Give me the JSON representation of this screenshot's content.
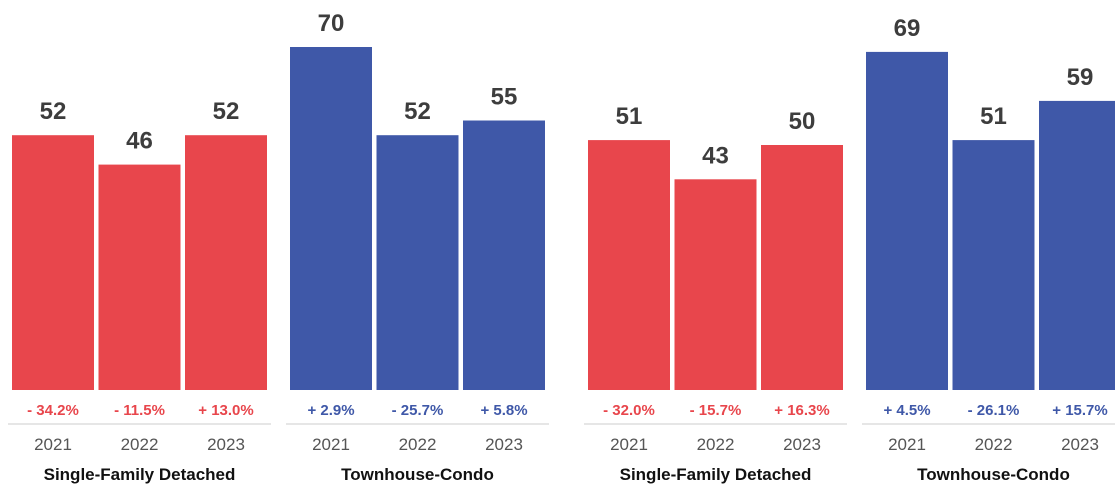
{
  "chart_data": [
    {
      "type": "bar",
      "groups": [
        {
          "label": "Single-Family Detached",
          "color": "#e8464c",
          "bars": [
            {
              "year": "2021",
              "value": 52,
              "value_label": "52",
              "change": "- 34.2%"
            },
            {
              "year": "2022",
              "value": 46,
              "value_label": "46",
              "change": "- 11.5%"
            },
            {
              "year": "2023",
              "value": 52,
              "value_label": "52",
              "change": "+ 13.0%"
            }
          ]
        },
        {
          "label": "Townhouse-Condo",
          "color": "#3f58a8",
          "bars": [
            {
              "year": "2021",
              "value": 70,
              "value_label": "70",
              "change": "+ 2.9%"
            },
            {
              "year": "2022",
              "value": 52,
              "value_label": "52",
              "change": "- 25.7%"
            },
            {
              "year": "2023",
              "value": 55,
              "value_label": "55",
              "change": "+ 5.8%"
            }
          ]
        }
      ]
    },
    {
      "type": "bar",
      "groups": [
        {
          "label": "Single-Family Detached",
          "color": "#e8464c",
          "bars": [
            {
              "year": "2021",
              "value": 51,
              "value_label": "51",
              "change": "- 32.0%"
            },
            {
              "year": "2022",
              "value": 43,
              "value_label": "43",
              "change": "- 15.7%"
            },
            {
              "year": "2023",
              "value": 50,
              "value_label": "50",
              "change": "+ 16.3%"
            }
          ]
        },
        {
          "label": "Townhouse-Condo",
          "color": "#3f58a8",
          "bars": [
            {
              "year": "2021",
              "value": 69,
              "value_label": "69",
              "change": "+ 4.5%"
            },
            {
              "year": "2022",
              "value": 51,
              "value_label": "51",
              "change": "- 26.1%"
            },
            {
              "year": "2023",
              "value": 59,
              "value_label": "59",
              "change": "+ 15.7%"
            }
          ]
        }
      ]
    }
  ]
}
